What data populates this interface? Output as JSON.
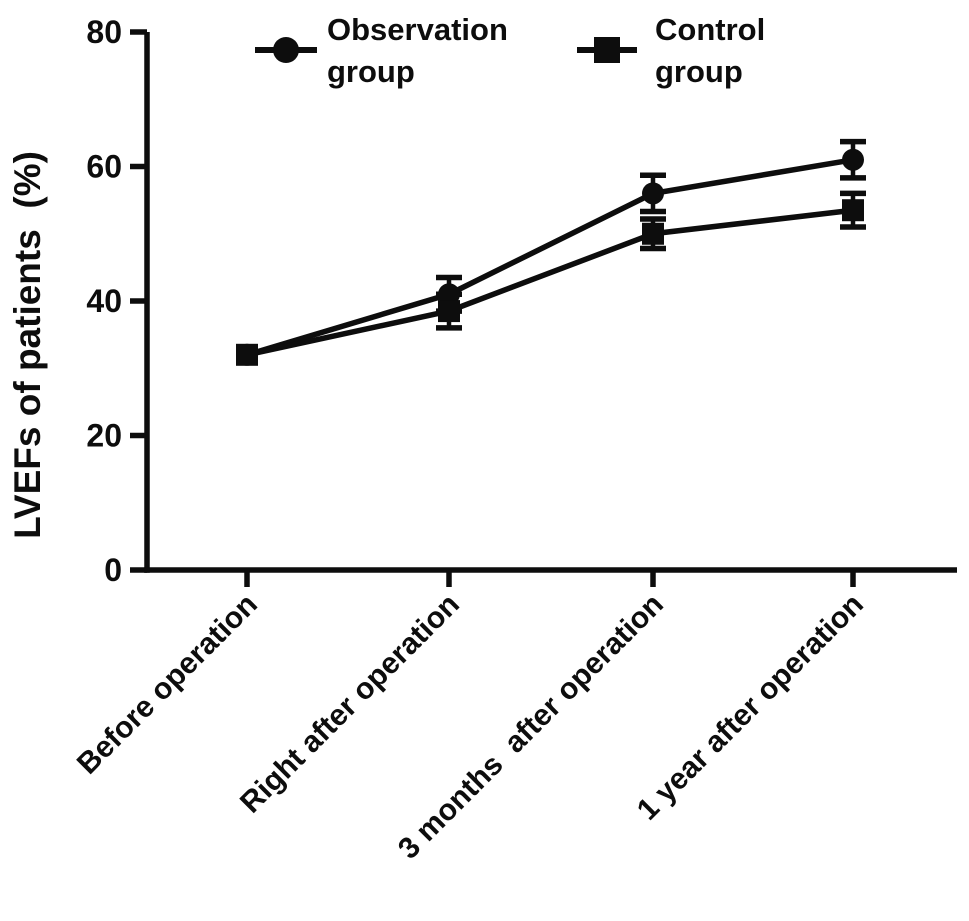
{
  "figure": {
    "background_color": "#ffffff",
    "ink_color": "#0d0d0d"
  },
  "chart_data": {
    "type": "line",
    "title": "",
    "xlabel": "",
    "ylabel": "LVEFs of patients  (%)",
    "ylim": [
      0,
      80
    ],
    "yticks": [
      0,
      20,
      40,
      60,
      80
    ],
    "categories": [
      "Before operation",
      "Right after operation",
      "3 months  after operation",
      "1 year after operation"
    ],
    "series": [
      {
        "name": "Observation group",
        "marker": "circle",
        "color": "#0d0d0d",
        "values": [
          32,
          41,
          56,
          61
        ],
        "errors": [
          0,
          2.5,
          2.7,
          2.7
        ]
      },
      {
        "name": "Control group",
        "marker": "square",
        "color": "#0d0d0d",
        "values": [
          32,
          38.5,
          50,
          53.5
        ],
        "errors": [
          0,
          2.5,
          2.2,
          2.5
        ]
      }
    ],
    "error_bars": true,
    "grid": false,
    "legend_position": "top"
  },
  "legend": {
    "items": [
      {
        "marker": "circle",
        "lines": [
          "Observation",
          "group"
        ]
      },
      {
        "marker": "square",
        "lines": [
          "Control",
          "group"
        ]
      }
    ]
  }
}
